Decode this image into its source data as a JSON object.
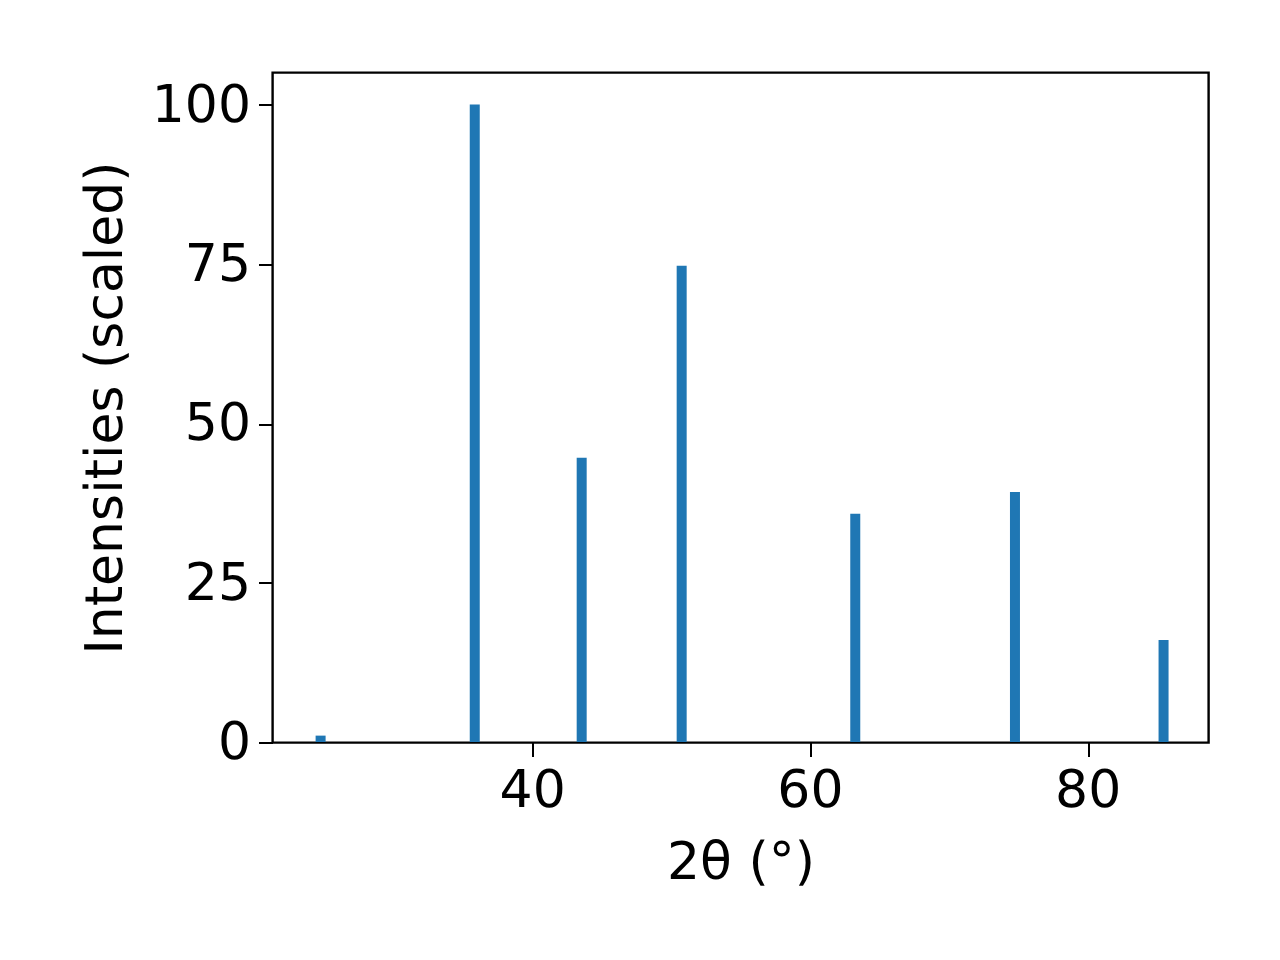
{
  "chart_data": {
    "type": "bar",
    "xlabel": "2θ (°)",
    "ylabel": "Intensities (scaled)",
    "x": [
      24.8,
      35.9,
      43.6,
      50.8,
      63.3,
      74.8,
      85.5
    ],
    "values": [
      1,
      100,
      44.6,
      74.7,
      35.8,
      39.2,
      16.0
    ],
    "color": "#1f77b4",
    "xlim": [
      21.3,
      88.7
    ],
    "xticks": [
      40,
      60,
      80
    ],
    "ylim": [
      0,
      105.1
    ],
    "yticks": [
      0,
      25,
      50,
      75,
      100
    ],
    "grid": false
  }
}
